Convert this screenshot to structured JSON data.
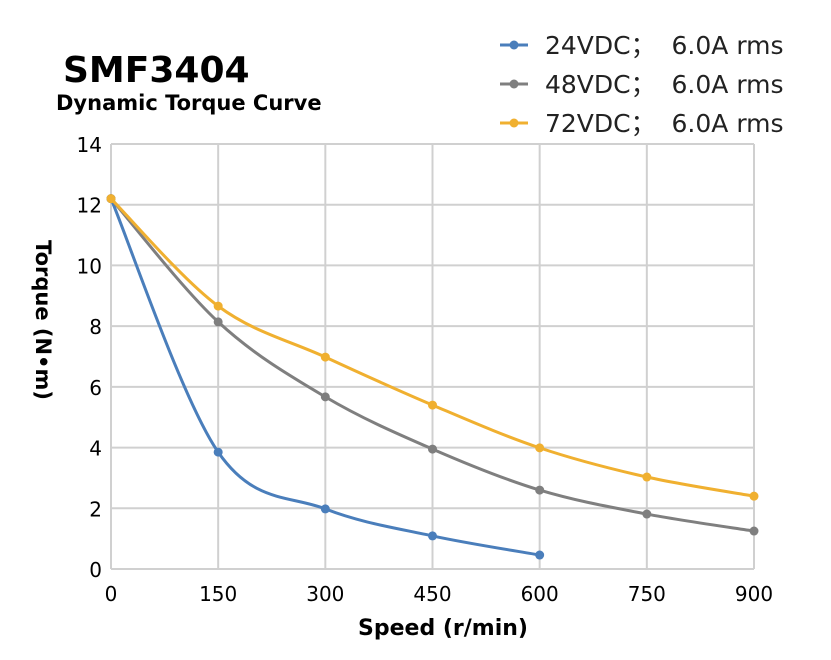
{
  "chart_data": {
    "type": "line",
    "title": "SMF3404",
    "subtitle": "Dynamic Torque Curve",
    "xlabel": "Speed (r/min)",
    "ylabel": "Torque (N•m)",
    "xlim": [
      0,
      900
    ],
    "ylim": [
      0,
      14
    ],
    "xticks": [
      "0",
      "150",
      "300",
      "450",
      "600",
      "750",
      "900"
    ],
    "yticks": [
      "0",
      "2",
      "4",
      "6",
      "8",
      "10",
      "12",
      "14"
    ],
    "grid": true,
    "legend_position": "top-right",
    "smooth": true,
    "series": [
      {
        "name": "24VDC；  6.0A rms",
        "color": "#4a7ebb",
        "x": [
          0,
          150,
          300,
          450,
          600
        ],
        "y": [
          12.2,
          3.85,
          1.98,
          1.09,
          0.46
        ]
      },
      {
        "name": "48VDC；  6.0A rms",
        "color": "#7f7f7f",
        "x": [
          0,
          150,
          300,
          450,
          600,
          750,
          900
        ],
        "y": [
          12.2,
          8.14,
          5.67,
          3.95,
          2.6,
          1.81,
          1.25
        ]
      },
      {
        "name": "72VDC；  6.0A rms",
        "color": "#f0b030",
        "x": [
          0,
          150,
          300,
          450,
          600,
          750,
          900
        ],
        "y": [
          12.2,
          8.66,
          6.98,
          5.4,
          3.99,
          3.03,
          2.4
        ]
      }
    ]
  }
}
